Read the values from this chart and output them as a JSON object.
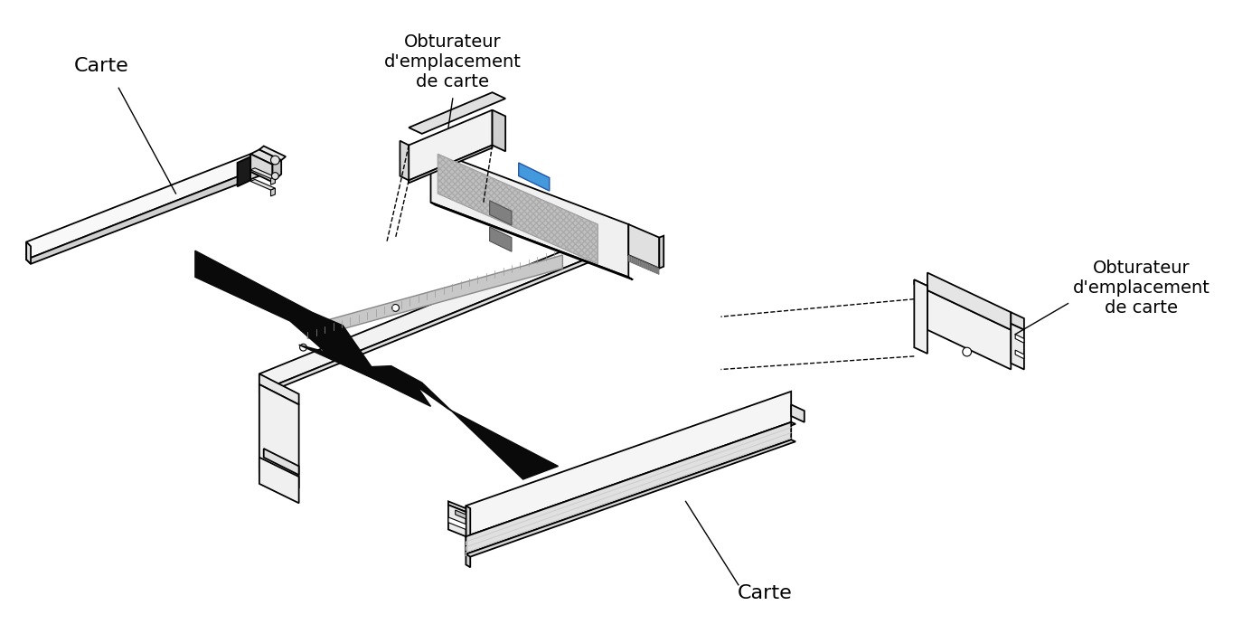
{
  "background_color": "#ffffff",
  "figsize": [
    13.64,
    7.11
  ],
  "dpi": 100,
  "labels": {
    "carte_top_left": "Carte",
    "obturateur_top": "Obturateur\nd'emplacement\nde carte",
    "obturateur_right": "Obturateur\nd'emplacement\nde carte",
    "carte_bottom": "Carte"
  },
  "label_fontsize": 14,
  "line_color": "#000000",
  "blue_accent": "#4499dd",
  "gray_fill": "#c8c8c8",
  "light_fill": "#f0f0f0",
  "mid_fill": "#e0e0e0",
  "dark_fill": "#d0d0d0"
}
